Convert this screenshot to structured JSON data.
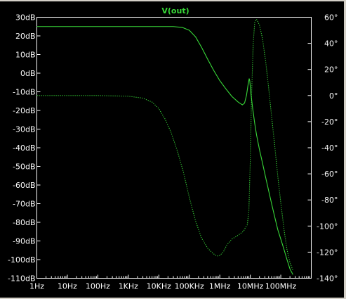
{
  "colors": {
    "background": "#000000",
    "frame": "#ffffff",
    "trace": "#38d838",
    "text": "#ffffff"
  },
  "chart_data": {
    "type": "line",
    "title": "V(out)",
    "x_scale": "log",
    "x_unit": "Hz",
    "xlim": [
      1,
      1000000000
    ],
    "xticks": [
      {
        "value": 1,
        "label": "1Hz"
      },
      {
        "value": 10,
        "label": "10Hz"
      },
      {
        "value": 100,
        "label": "100Hz"
      },
      {
        "value": 1000,
        "label": "1KHz"
      },
      {
        "value": 10000,
        "label": "10KHz"
      },
      {
        "value": 100000,
        "label": "100KHz"
      },
      {
        "value": 1000000,
        "label": "1MHz"
      },
      {
        "value": 10000000,
        "label": "10MHz"
      },
      {
        "value": 100000000,
        "label": "100MHz"
      }
    ],
    "y_left": {
      "unit": "dB",
      "range": [
        -110,
        30
      ],
      "ticks": [
        {
          "value": 30,
          "label": "30dB"
        },
        {
          "value": 20,
          "label": "20dB"
        },
        {
          "value": 10,
          "label": "10dB"
        },
        {
          "value": 0,
          "label": "0dB"
        },
        {
          "value": -10,
          "label": "-10dB"
        },
        {
          "value": -20,
          "label": "-20dB"
        },
        {
          "value": -30,
          "label": "-30dB"
        },
        {
          "value": -40,
          "label": "-40dB"
        },
        {
          "value": -50,
          "label": "-50dB"
        },
        {
          "value": -60,
          "label": "-60dB"
        },
        {
          "value": -70,
          "label": "-70dB"
        },
        {
          "value": -80,
          "label": "-80dB"
        },
        {
          "value": -90,
          "label": "-90dB"
        },
        {
          "value": -100,
          "label": "-100dB"
        },
        {
          "value": -110,
          "label": "-110dB"
        }
      ]
    },
    "y_right": {
      "unit": "°",
      "range": [
        -140,
        60
      ],
      "ticks": [
        {
          "value": 60,
          "label": "60°"
        },
        {
          "value": 40,
          "label": "40°"
        },
        {
          "value": 20,
          "label": "20°"
        },
        {
          "value": 0,
          "label": "0°"
        },
        {
          "value": -20,
          "label": "-20°"
        },
        {
          "value": -40,
          "label": "-40°"
        },
        {
          "value": -60,
          "label": "-60°"
        },
        {
          "value": -80,
          "label": "-80°"
        },
        {
          "value": -100,
          "label": "-100°"
        },
        {
          "value": -120,
          "label": "-120°"
        },
        {
          "value": -140,
          "label": "-140°"
        }
      ]
    },
    "grid": false,
    "series": [
      {
        "kind": "magnitude",
        "axis": "left",
        "style": "solid",
        "points": [
          [
            1,
            25
          ],
          [
            1000,
            25
          ],
          [
            10000,
            25
          ],
          [
            30000,
            25
          ],
          [
            60000,
            24.5
          ],
          [
            100000,
            23
          ],
          [
            160000,
            19.5
          ],
          [
            250000,
            14
          ],
          [
            400000,
            7.5
          ],
          [
            630000,
            1.5
          ],
          [
            1000000,
            -4
          ],
          [
            1600000,
            -8.5
          ],
          [
            2500000,
            -12.5
          ],
          [
            4000000,
            -15.5
          ],
          [
            5500000,
            -17
          ],
          [
            6500000,
            -16
          ],
          [
            7500000,
            -12
          ],
          [
            8500000,
            -6
          ],
          [
            9200000,
            -3
          ],
          [
            9600000,
            -4
          ],
          [
            10500000,
            -11
          ],
          [
            12000000,
            -19
          ],
          [
            14000000,
            -27
          ],
          [
            16000000,
            -33
          ],
          [
            20000000,
            -41
          ],
          [
            25000000,
            -48
          ],
          [
            32000000,
            -56
          ],
          [
            40000000,
            -63
          ],
          [
            50000000,
            -70
          ],
          [
            63000000,
            -77
          ],
          [
            80000000,
            -84
          ],
          [
            100000000,
            -89
          ],
          [
            130000000,
            -95
          ],
          [
            160000000,
            -100
          ],
          [
            200000000,
            -105
          ],
          [
            250000000,
            -108
          ]
        ]
      },
      {
        "kind": "phase",
        "axis": "right",
        "style": "dotted",
        "points": [
          [
            1,
            0
          ],
          [
            100,
            0
          ],
          [
            1000,
            -0.5
          ],
          [
            3000,
            -2
          ],
          [
            6000,
            -5
          ],
          [
            10000,
            -10
          ],
          [
            16000,
            -18
          ],
          [
            25000,
            -28
          ],
          [
            40000,
            -42
          ],
          [
            63000,
            -58
          ],
          [
            100000,
            -78
          ],
          [
            160000,
            -96
          ],
          [
            250000,
            -109
          ],
          [
            400000,
            -117
          ],
          [
            600000,
            -121
          ],
          [
            800000,
            -123
          ],
          [
            1000000,
            -122.5
          ],
          [
            1300000,
            -120
          ],
          [
            1700000,
            -114.5
          ],
          [
            2500000,
            -110
          ],
          [
            4000000,
            -107
          ],
          [
            6000000,
            -104
          ],
          [
            7000000,
            -101
          ],
          [
            8000000,
            -99
          ],
          [
            9000000,
            -88
          ],
          [
            10000000,
            -50
          ],
          [
            11000000,
            0
          ],
          [
            12500000,
            40
          ],
          [
            14000000,
            56
          ],
          [
            16000000,
            58.5
          ],
          [
            20000000,
            54
          ],
          [
            25000000,
            44
          ],
          [
            32000000,
            26
          ],
          [
            40000000,
            6
          ],
          [
            50000000,
            -16
          ],
          [
            63000000,
            -38
          ],
          [
            80000000,
            -62
          ],
          [
            100000000,
            -82
          ],
          [
            130000000,
            -104
          ],
          [
            160000000,
            -118
          ],
          [
            200000000,
            -128
          ],
          [
            250000000,
            -134
          ]
        ]
      }
    ]
  }
}
